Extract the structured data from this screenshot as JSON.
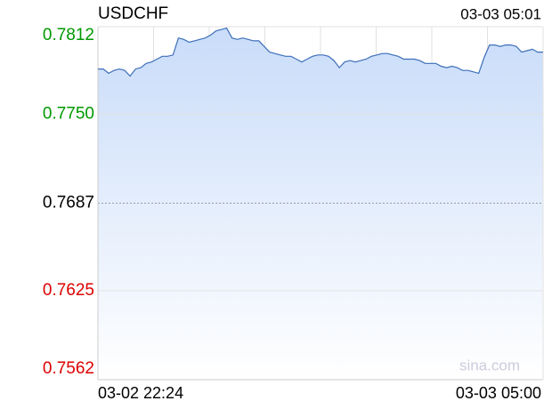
{
  "chart_data": {
    "type": "area",
    "title": "USDCHF",
    "last_time": "03-03 05:01",
    "watermark": "sina.com",
    "x_labels": [
      "03-02 22:24",
      "03-03 05:00"
    ],
    "ylim": [
      0.7562,
      0.7812
    ],
    "yticks": [
      {
        "value": 0.7812,
        "label": "0.7812"
      },
      {
        "value": 0.775,
        "label": "0.7750"
      },
      {
        "value": 0.7687,
        "label": "0.7687"
      },
      {
        "value": 0.7625,
        "label": "0.7625"
      },
      {
        "value": 0.7562,
        "label": "0.7562"
      }
    ],
    "up_color": "#009900",
    "down_color": "#dd0000",
    "grid": true,
    "series": [
      {
        "name": "USDCHF",
        "color": "#3d6fb8",
        "values": [
          0.7782,
          0.7782,
          0.7779,
          0.7781,
          0.7782,
          0.7781,
          0.7777,
          0.7782,
          0.7783,
          0.7786,
          0.7787,
          0.7789,
          0.7791,
          0.7791,
          0.7792,
          0.7804,
          0.7803,
          0.7801,
          0.7802,
          0.7803,
          0.7804,
          0.7806,
          0.7809,
          0.781,
          0.7811,
          0.7804,
          0.7803,
          0.7804,
          0.7803,
          0.7802,
          0.7802,
          0.7798,
          0.7794,
          0.7793,
          0.7792,
          0.7791,
          0.7791,
          0.7789,
          0.7787,
          0.7789,
          0.7791,
          0.7792,
          0.7792,
          0.7791,
          0.7788,
          0.7783,
          0.7787,
          0.7788,
          0.7787,
          0.7788,
          0.7789,
          0.7791,
          0.7792,
          0.7793,
          0.7793,
          0.7792,
          0.7791,
          0.7789,
          0.7789,
          0.7789,
          0.7788,
          0.7786,
          0.7786,
          0.7786,
          0.7784,
          0.7783,
          0.7784,
          0.7783,
          0.7781,
          0.7781,
          0.778,
          0.7779,
          0.779,
          0.7799,
          0.7799,
          0.7798,
          0.7799,
          0.7799,
          0.7798,
          0.7794,
          0.7795,
          0.7796,
          0.7794,
          0.7794
        ]
      }
    ]
  }
}
